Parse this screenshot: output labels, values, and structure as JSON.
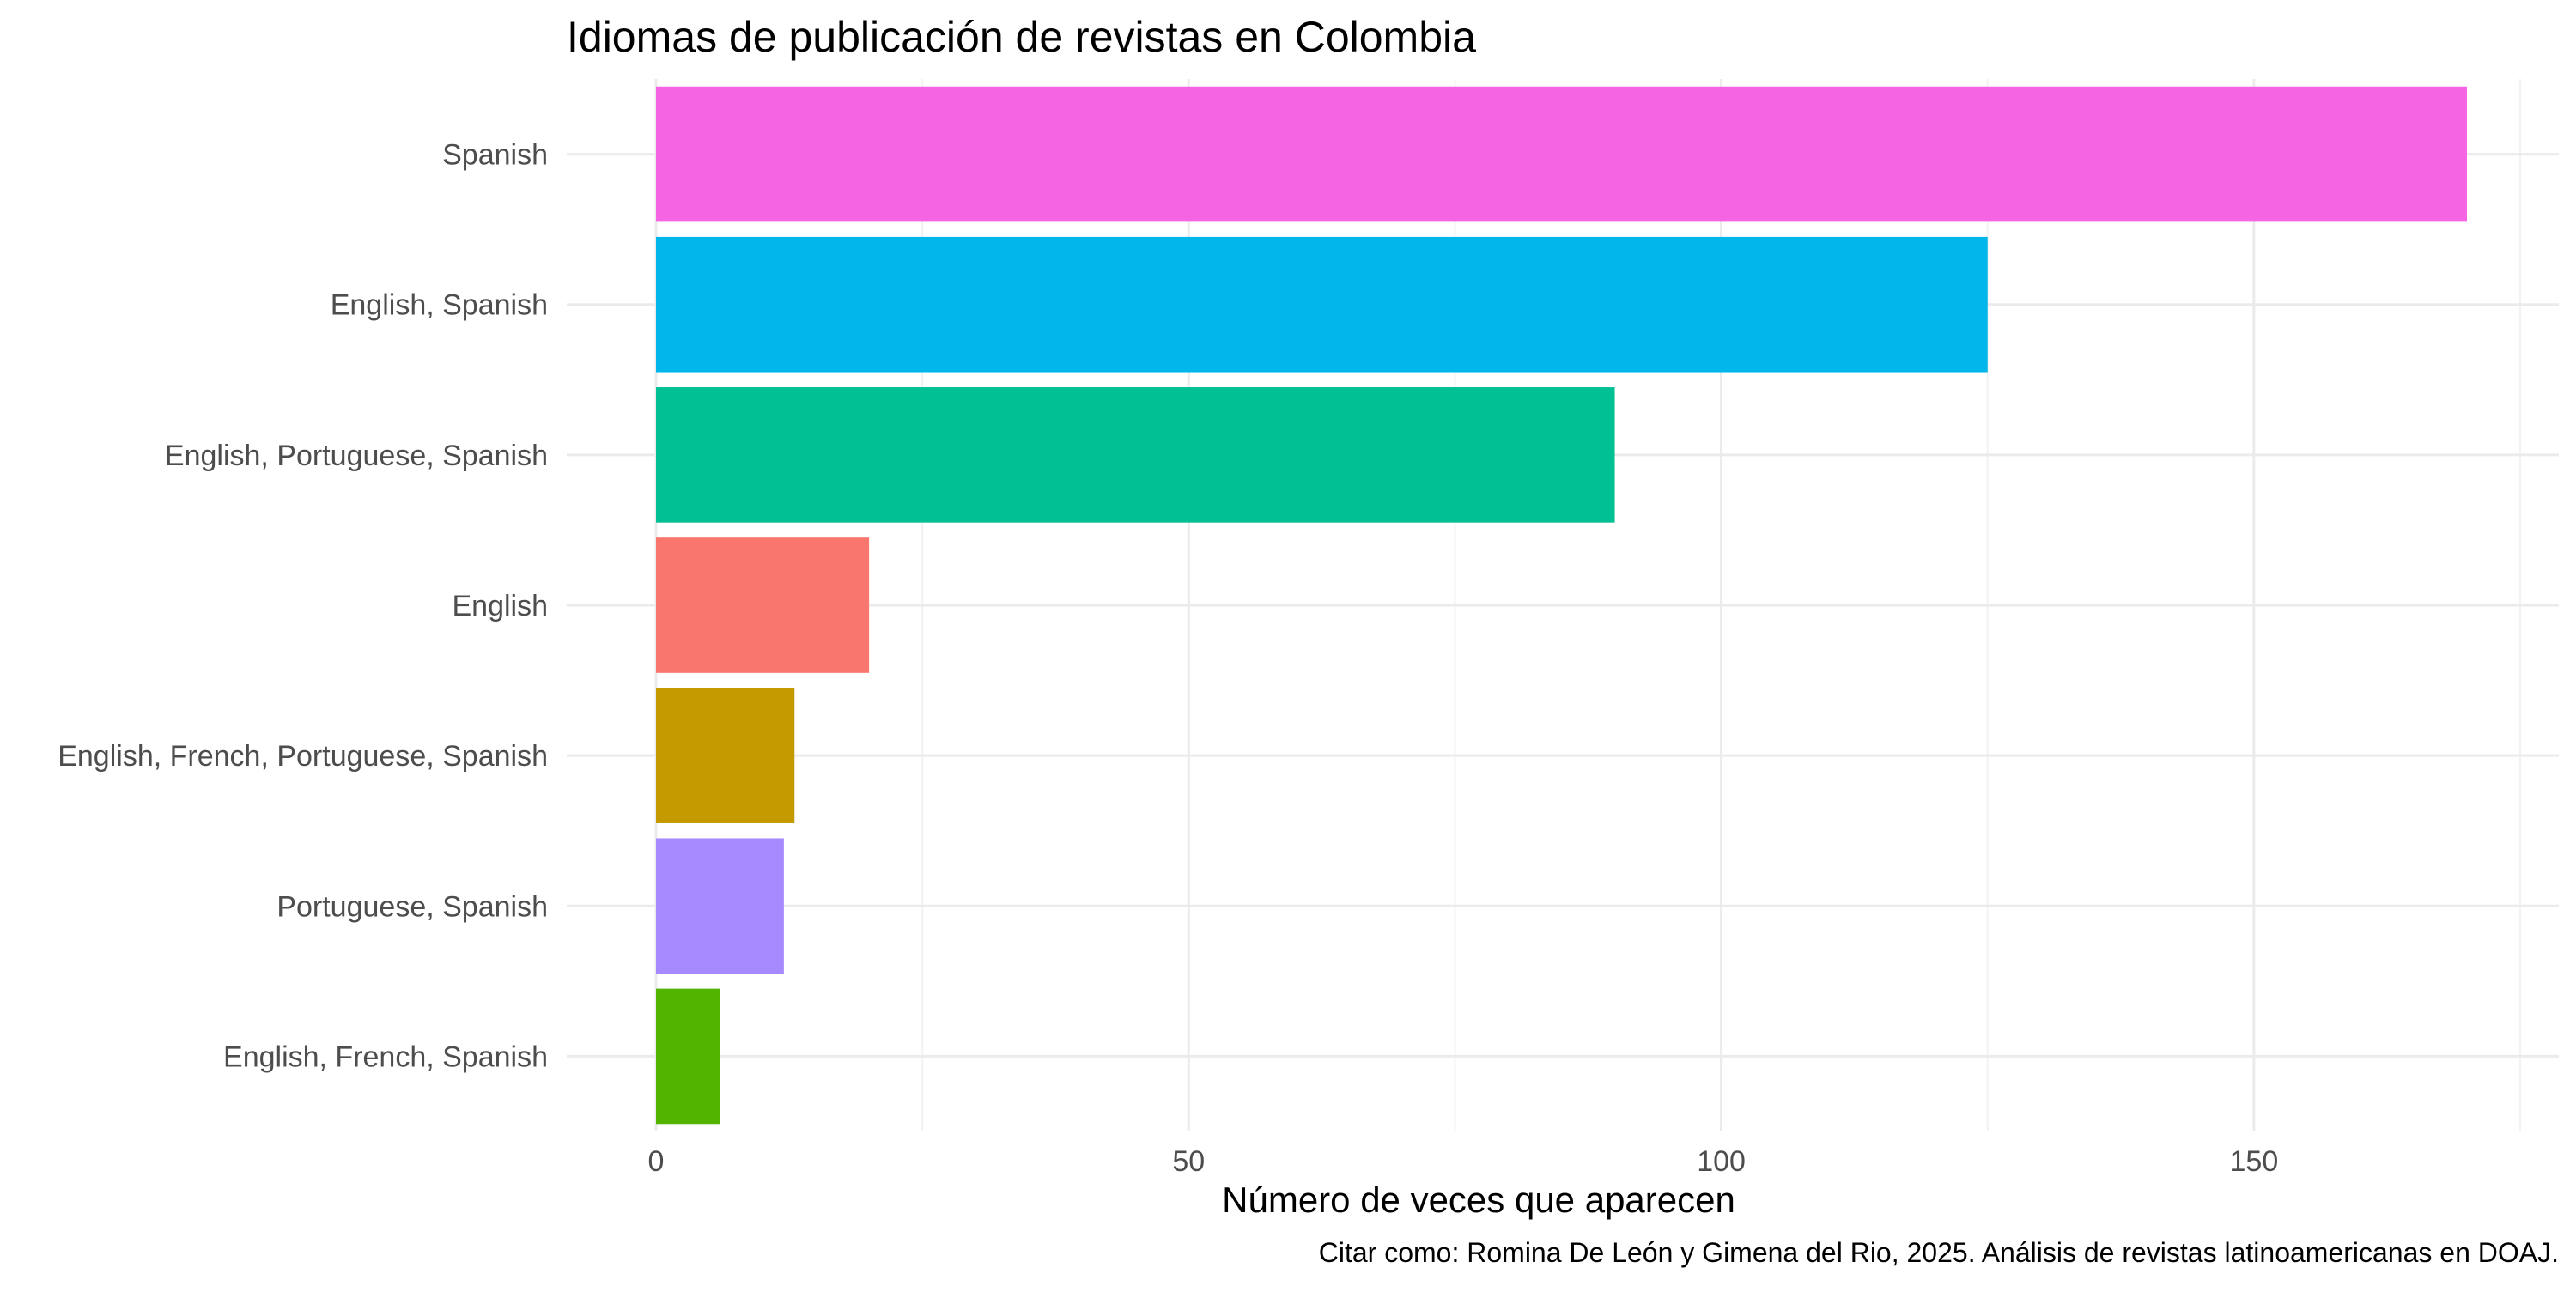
{
  "chart_data": {
    "type": "bar",
    "orientation": "horizontal",
    "title": "Idiomas de publicación de revistas en Colombia",
    "xlabel": "Número de veces que aparecen",
    "ylabel": "",
    "caption": "Citar como: Romina De León y Gimena del Rio, 2025. Análisis de revistas latinoamericanas en DOAJ.",
    "xlim": [
      0,
      178
    ],
    "xticks": [
      0,
      50,
      100,
      150
    ],
    "grid": true,
    "legend": "none",
    "categories": [
      "Spanish",
      "English, Spanish",
      "English, Portuguese, Spanish",
      "English",
      "English, French, Portuguese, Spanish",
      "Portuguese, Spanish",
      "English, French, Spanish"
    ],
    "values": [
      170,
      125,
      90,
      20,
      13,
      12,
      6
    ],
    "colors": [
      "#F564E3",
      "#00B6EB",
      "#00C094",
      "#F8766D",
      "#C49A00",
      "#A58AFF",
      "#53B400"
    ]
  }
}
